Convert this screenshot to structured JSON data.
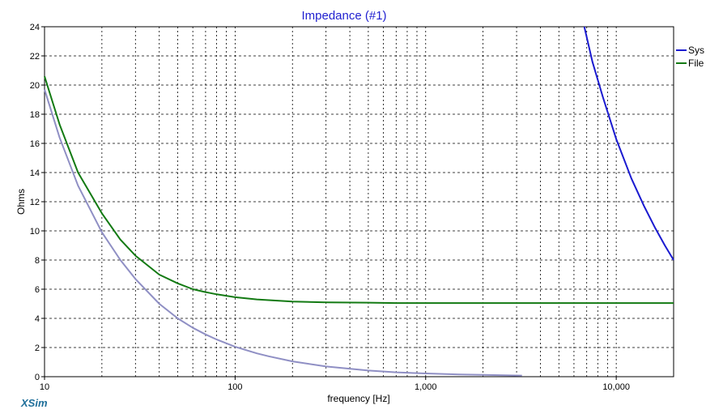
{
  "chart_data": {
    "type": "line",
    "title": "Impedance (#1)",
    "xlabel": "frequency [Hz]",
    "ylabel": "Ohms",
    "xscale": "log",
    "xlim": [
      10,
      20000
    ],
    "ylim": [
      0,
      24
    ],
    "grid": true,
    "x_tick_labels": [
      {
        "value": 10,
        "label": "10"
      },
      {
        "value": 100,
        "label": "100"
      },
      {
        "value": 1000,
        "label": "1,000"
      },
      {
        "value": 10000,
        "label": "10,000"
      }
    ],
    "y_ticks": [
      0,
      2,
      4,
      6,
      8,
      10,
      12,
      14,
      16,
      18,
      20,
      22,
      24
    ],
    "legend_position": "right",
    "series": [
      {
        "name": "Sys",
        "color": "#1a1ad0",
        "x": [
          6800,
          7500,
          8500,
          10000,
          12000,
          14000,
          16000,
          18000,
          20000
        ],
        "values": [
          24,
          21.6,
          19.2,
          16.3,
          13.6,
          11.7,
          10.2,
          9.0,
          8.0
        ]
      },
      {
        "name": "File",
        "color": "#137a13",
        "x": [
          10,
          12,
          15,
          20,
          25,
          30,
          40,
          50,
          60,
          70,
          80,
          100,
          130,
          150,
          200,
          300,
          500,
          700,
          1000,
          2000,
          5000,
          10000,
          20000
        ],
        "values": [
          20.6,
          17.3,
          14.0,
          11.2,
          9.4,
          8.3,
          7.0,
          6.4,
          6.0,
          5.8,
          5.65,
          5.45,
          5.3,
          5.25,
          5.15,
          5.1,
          5.08,
          5.05,
          5.05,
          5.05,
          5.05,
          5.05,
          5.05
        ]
      },
      {
        "name": "",
        "color": "#8f8fc4",
        "x": [
          10,
          12,
          15,
          20,
          25,
          30,
          40,
          50,
          60,
          70,
          80,
          100,
          130,
          150,
          200,
          300,
          500,
          700,
          1000,
          1500,
          2000,
          3200
        ],
        "values": [
          19.7,
          16.4,
          13.1,
          9.9,
          8.0,
          6.7,
          5.0,
          4.0,
          3.35,
          2.9,
          2.55,
          2.05,
          1.6,
          1.4,
          1.05,
          0.7,
          0.42,
          0.3,
          0.22,
          0.15,
          0.12,
          0.08
        ]
      }
    ]
  },
  "brand": "XSim"
}
